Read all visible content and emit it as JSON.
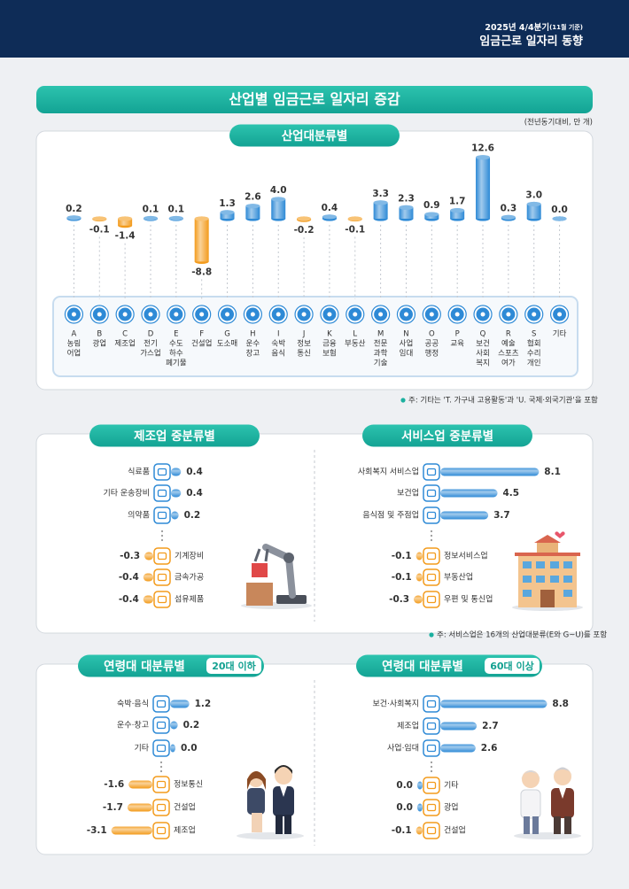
{
  "header": {
    "period": "2025년 4/4분기",
    "period_note": "(11월 기준)",
    "title": "임금근로 일자리 동향"
  },
  "title": "산업별 임금근로 일자리 증감",
  "unit": "(전년동기대비, 만 개)",
  "chart_data": [
    {
      "type": "bar",
      "title": "산업대분류별",
      "codes": [
        "A",
        "B",
        "C",
        "D",
        "E",
        "F",
        "G",
        "H",
        "I",
        "J",
        "K",
        "L",
        "M",
        "N",
        "O",
        "P",
        "Q",
        "R",
        "S",
        null
      ],
      "categories": [
        [
          "농림",
          "어업"
        ],
        [
          "광업"
        ],
        [
          "제조업"
        ],
        [
          "전기",
          "가스업"
        ],
        [
          "수도",
          "하수",
          "폐기물"
        ],
        [
          "건설업"
        ],
        [
          "도소매"
        ],
        [
          "운수",
          "창고"
        ],
        [
          "숙박",
          "음식"
        ],
        [
          "정보",
          "통신"
        ],
        [
          "금융",
          "보험"
        ],
        [
          "부동산"
        ],
        [
          "전문",
          "과학",
          "기술"
        ],
        [
          "사업",
          "임대"
        ],
        [
          "공공",
          "행정"
        ],
        [
          "교육"
        ],
        [
          "보건",
          "사회",
          "복지"
        ],
        [
          "예술",
          "스포츠",
          "여가"
        ],
        [
          "협회",
          "수리",
          "개인"
        ],
        [
          "기타"
        ]
      ],
      "values": [
        0.2,
        -0.1,
        -1.4,
        0.1,
        0.1,
        -8.8,
        1.3,
        2.6,
        4.0,
        -0.2,
        0.4,
        -0.1,
        3.3,
        2.3,
        0.9,
        1.7,
        12.6,
        0.3,
        3.0,
        0.0
      ],
      "value_labels": [
        "0.2",
        "-0.1",
        "-1.4",
        "0.1",
        "0.1",
        "-8.8",
        "1.3",
        "2.6",
        "4.0",
        "-0.2",
        "0.4",
        "-0.1",
        "3.3",
        "2.3",
        "0.9",
        "1.7",
        "12.6",
        "0.3",
        "3.0",
        "0.0"
      ],
      "positive_color": "#2e8ad6",
      "negative_color": "#f39b1c",
      "note": "주: 기타는 'T. 가구내 고용활동'과 'U. 국제·외국기관'을 포함"
    },
    {
      "type": "barh",
      "title": "제조업 중분류별",
      "categories": [
        "식료품",
        "기타 운송장비",
        "의약품",
        "기계장비",
        "금속가공",
        "섬유제품"
      ],
      "values": [
        0.4,
        0.4,
        0.2,
        -0.3,
        -0.4,
        -0.4
      ],
      "value_labels": [
        "0.4",
        "0.4",
        "0.2",
        "-0.3",
        "-0.4",
        "-0.4"
      ],
      "positive_color": "#2e8ad6",
      "negative_color": "#f39b1c"
    },
    {
      "type": "barh",
      "title": "서비스업 중분류별",
      "categories": [
        "사회복지 서비스업",
        "보건업",
        "음식점 및 주점업",
        "정보서비스업",
        "부동산업",
        "우편 및 통신업"
      ],
      "values": [
        8.1,
        4.5,
        3.7,
        -0.1,
        -0.1,
        -0.3
      ],
      "value_labels": [
        "8.1",
        "4.5",
        "3.7",
        "-0.1",
        "-0.1",
        "-0.3"
      ],
      "positive_color": "#2e8ad6",
      "negative_color": "#f39b1c",
      "note": "주: 서비스업은 16개의 산업대분류(E와 G~U)를 포함"
    },
    {
      "type": "barh",
      "title": "연령대 대분류별",
      "badge": "20대 이하",
      "categories": [
        "숙박·음식",
        "운수·창고",
        "기타",
        "정보통신",
        "건설업",
        "제조업"
      ],
      "values": [
        1.2,
        0.2,
        0.0,
        -1.6,
        -1.7,
        -3.1
      ],
      "value_labels": [
        "1.2",
        "0.2",
        "0.0",
        "-1.6",
        "-1.7",
        "-3.1"
      ],
      "positive_color": "#2e8ad6",
      "negative_color": "#f39b1c"
    },
    {
      "type": "barh",
      "title": "연령대 대분류별",
      "badge": "60대 이상",
      "categories": [
        "보건·사회복지",
        "제조업",
        "사업·임대",
        "기타",
        "광업",
        "건설업"
      ],
      "values": [
        8.8,
        2.7,
        2.6,
        0.0,
        0.0,
        -0.1
      ],
      "value_labels": [
        "8.8",
        "2.7",
        "2.6",
        "0.0",
        "0.0",
        "-0.1"
      ],
      "positive_color": "#2e8ad6",
      "negative_color": "#f39b1c"
    }
  ]
}
